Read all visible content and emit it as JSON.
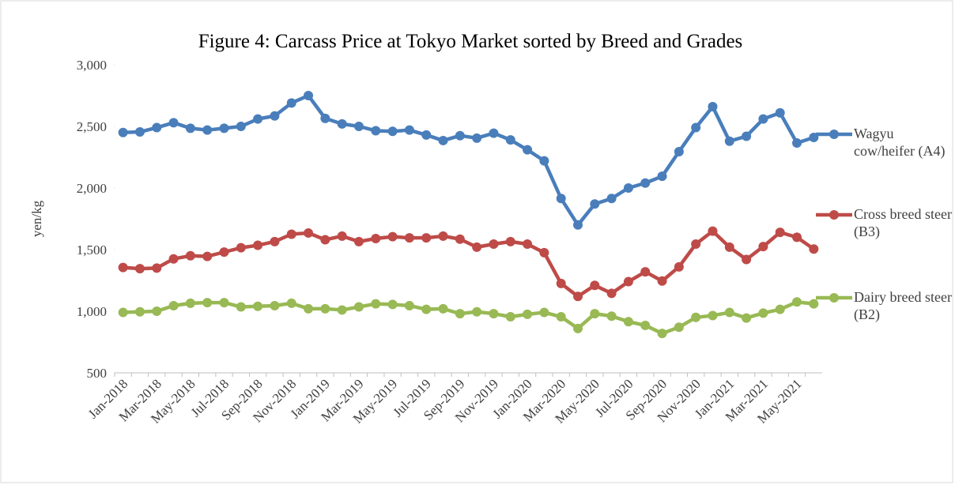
{
  "chart_data": {
    "type": "line",
    "title": "Figure 4: Carcass Price at Tokyo Market sorted by Breed and Grades",
    "y_label": "yen/kg",
    "categories": [
      "Jan-2018",
      null,
      "Mar-2018",
      null,
      "May-2018",
      null,
      "Jul-2018",
      null,
      "Sep-2018",
      null,
      "Nov-2018",
      null,
      "Jan-2019",
      null,
      "Mar-2019",
      null,
      "May-2019",
      null,
      "Jul-2019",
      null,
      "Sep-2019",
      null,
      "Nov-2019",
      null,
      "Jan-2020",
      null,
      "Mar-2020",
      null,
      "May-2020",
      null,
      "Jul-2020",
      null,
      "Sep-2020",
      null,
      "Nov-2020",
      null,
      "Jan-2021",
      null,
      "Mar-2021",
      null,
      "May-2021",
      null
    ],
    "series": [
      {
        "name": "Wagyu cow/heifer (A4)",
        "color": "#4a7ebb",
        "values": [
          2450,
          2455,
          2490,
          2530,
          2485,
          2470,
          2485,
          2500,
          2560,
          2585,
          2690,
          2750,
          2565,
          2520,
          2500,
          2465,
          2460,
          2470,
          2430,
          2385,
          2425,
          2405,
          2445,
          2390,
          2310,
          2220,
          1915,
          1700,
          1870,
          1915,
          2000,
          2040,
          2095,
          2295,
          2490,
          2660,
          2380,
          2420,
          2560,
          2610,
          2365,
          2410
        ]
      },
      {
        "name": "Cross breed steer (B3)",
        "color": "#be4b48",
        "values": [
          1355,
          1345,
          1350,
          1425,
          1450,
          1445,
          1480,
          1515,
          1535,
          1565,
          1625,
          1635,
          1580,
          1610,
          1565,
          1590,
          1605,
          1595,
          1595,
          1610,
          1585,
          1520,
          1545,
          1565,
          1545,
          1475,
          1225,
          1120,
          1210,
          1145,
          1240,
          1320,
          1245,
          1360,
          1545,
          1650,
          1520,
          1420,
          1525,
          1640,
          1600,
          1505
        ]
      },
      {
        "name": "Dairy breed steer (B2)",
        "color": "#98b954",
        "values": [
          990,
          995,
          1000,
          1045,
          1065,
          1070,
          1070,
          1035,
          1040,
          1045,
          1065,
          1020,
          1020,
          1010,
          1035,
          1060,
          1055,
          1045,
          1015,
          1020,
          980,
          995,
          980,
          955,
          975,
          990,
          955,
          860,
          980,
          960,
          915,
          885,
          820,
          870,
          950,
          965,
          990,
          945,
          985,
          1015,
          1075,
          1060
        ]
      }
    ],
    "ylim": [
      500,
      3000
    ],
    "yticks": [
      500,
      {
        "value": 1000,
        "label": "1,000"
      },
      {
        "value": 1500,
        "label": "1,500"
      },
      {
        "value": 2000,
        "label": "2,000"
      },
      {
        "value": 2500,
        "label": "2,500"
      },
      {
        "value": 3000,
        "label": "3,000"
      }
    ],
    "legend": "right"
  }
}
